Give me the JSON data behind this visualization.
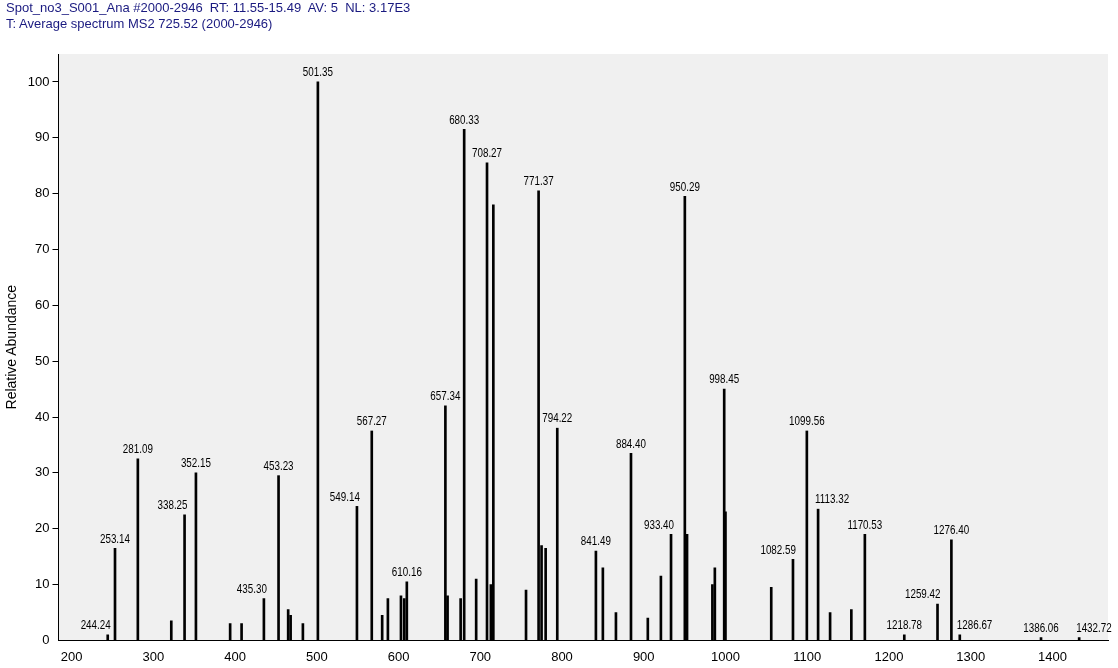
{
  "chart_data": {
    "type": "bar",
    "title": "Spot_no3_S001_Ana #2000-2946  RT: 11.55-15.49  AV: 5  NL: 3.17E3",
    "subtitle": "T: Average spectrum MS2 725.52 (2000-2946)",
    "ylabel": "Relative Abundance",
    "x": [
      244.24,
      253.14,
      281.09,
      322,
      338.25,
      352.15,
      394,
      408,
      435.3,
      453.23,
      465,
      468,
      483,
      501.35,
      549.14,
      567.27,
      580,
      587,
      603,
      607,
      610.16,
      657.34,
      660,
      676,
      680.33,
      695,
      708.27,
      713,
      716,
      756,
      771.37,
      775,
      780,
      794.22,
      841.49,
      850,
      866,
      884.4,
      905,
      921,
      933.4,
      950.29,
      953,
      984,
      987,
      998.45,
      1000,
      1056,
      1082.59,
      1099.56,
      1113.32,
      1128,
      1154,
      1170.53,
      1218.78,
      1259.42,
      1276.4,
      1286.67,
      1386.06,
      1432.72
    ],
    "series": [
      {
        "color": "#000000",
        "values": [
          1,
          16.5,
          32.5,
          3.5,
          22.5,
          30,
          3,
          3,
          7.5,
          29.5,
          5.5,
          4.5,
          3,
          100,
          24,
          37.5,
          4.5,
          7.5,
          8,
          7.5,
          10.5,
          42,
          8,
          7.5,
          91.5,
          11,
          85.5,
          10,
          78,
          9,
          80.5,
          17,
          16.5,
          38,
          16,
          13,
          5,
          33.5,
          4,
          11.5,
          19,
          79.5,
          19,
          10,
          13,
          45,
          23,
          9.5,
          14.5,
          37.5,
          23.5,
          5,
          5.5,
          19,
          1,
          6.5,
          18,
          1,
          0.5,
          0.5
        ]
      }
    ],
    "annotations": [
      {
        "text": "244.24",
        "x": 244.24,
        "y": 1
      },
      {
        "text": "253.14",
        "x": 253.14,
        "y": 16.5
      },
      {
        "text": "281.09",
        "x": 281.09,
        "y": 32.5
      },
      {
        "text": "338.25",
        "x": 338.25,
        "y": 22.5
      },
      {
        "text": "352.15",
        "x": 352.15,
        "y": 30
      },
      {
        "text": "435.30",
        "x": 435.3,
        "y": 7.5
      },
      {
        "text": "453.23",
        "x": 453.23,
        "y": 29.5
      },
      {
        "text": "501.35",
        "x": 501.35,
        "y": 100
      },
      {
        "text": "549.14",
        "x": 549.14,
        "y": 24
      },
      {
        "text": "567.27",
        "x": 567.27,
        "y": 37.5
      },
      {
        "text": "610.16",
        "x": 610.16,
        "y": 10.5
      },
      {
        "text": "657.34",
        "x": 657.34,
        "y": 42
      },
      {
        "text": "680.33",
        "x": 680.33,
        "y": 91.5
      },
      {
        "text": "708.27",
        "x": 708.27,
        "y": 85.5
      },
      {
        "text": "771.37",
        "x": 771.37,
        "y": 80.5
      },
      {
        "text": "794.22",
        "x": 794.22,
        "y": 38
      },
      {
        "text": "841.49",
        "x": 841.49,
        "y": 16
      },
      {
        "text": "884.40",
        "x": 884.4,
        "y": 33.5
      },
      {
        "text": "933.40",
        "x": 933.4,
        "y": 19
      },
      {
        "text": "950.29",
        "x": 950.29,
        "y": 79.5
      },
      {
        "text": "998.45",
        "x": 998.45,
        "y": 45
      },
      {
        "text": "1082.59",
        "x": 1082.59,
        "y": 14.5
      },
      {
        "text": "1099.56",
        "x": 1099.56,
        "y": 37.5
      },
      {
        "text": "1113.32",
        "x": 1113.32,
        "y": 23.5
      },
      {
        "text": "1170.53",
        "x": 1170.53,
        "y": 19
      },
      {
        "text": "1218.78",
        "x": 1218.78,
        "y": 1
      },
      {
        "text": "1259.42",
        "x": 1259.42,
        "y": 6.5
      },
      {
        "text": "1276.40",
        "x": 1276.4,
        "y": 18
      },
      {
        "text": "1286.67",
        "x": 1286.67,
        "y": 1
      },
      {
        "text": "1386.06",
        "x": 1386.06,
        "y": 0.5
      },
      {
        "text": "1432.72",
        "x": 1432.72,
        "y": 0.5
      }
    ],
    "xlim": [
      184,
      1468
    ],
    "xticks": [
      200,
      300,
      400,
      500,
      600,
      700,
      800,
      900,
      1000,
      1100,
      1200,
      1300,
      1400
    ],
    "ylim": [
      0,
      105
    ],
    "yticks": [
      0,
      10,
      20,
      30,
      40,
      50,
      60,
      70,
      80,
      90,
      100
    ],
    "grid": false,
    "legend": false
  }
}
